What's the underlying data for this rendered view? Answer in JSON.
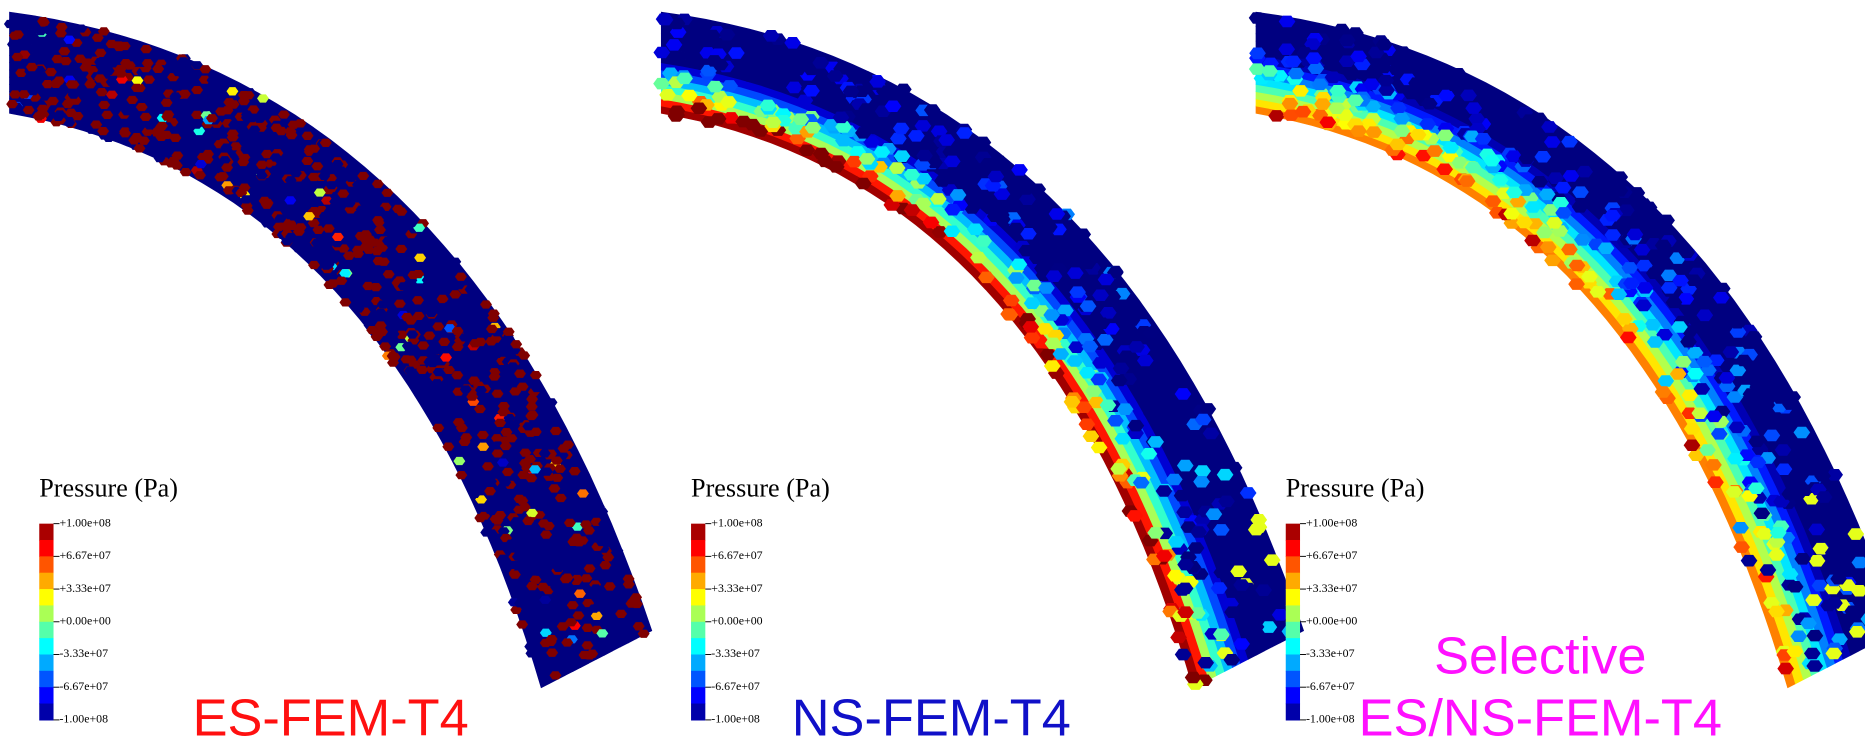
{
  "panels": [
    {
      "legend_title": "Pressure (Pa)",
      "colorbar_ticks": [
        "+1.00e+08",
        "+6.67e+07",
        "+3.33e+07",
        "+0.00e+00",
        "-3.33e+07",
        "-6.67e+07",
        "-1.00e+08"
      ],
      "label": [
        "ES-FEM-T4"
      ]
    },
    {
      "legend_title": "Pressure (Pa)",
      "colorbar_ticks": [
        "+1.00e+08",
        "+6.67e+07",
        "+3.33e+07",
        "+0.00e+00",
        "-3.33e+07",
        "-6.67e+07",
        "-1.00e+08"
      ],
      "label": [
        "NS-FEM-T4"
      ]
    },
    {
      "legend_title": "Pressure (Pa)",
      "colorbar_ticks": [
        "+1.00e+08",
        "+6.67e+07",
        "+3.33e+07",
        "+0.00e+00",
        "-3.33e+07",
        "-6.67e+07",
        "-1.00e+08"
      ],
      "label": [
        "Selective",
        "ES/NS-FEM-T4"
      ]
    }
  ]
}
